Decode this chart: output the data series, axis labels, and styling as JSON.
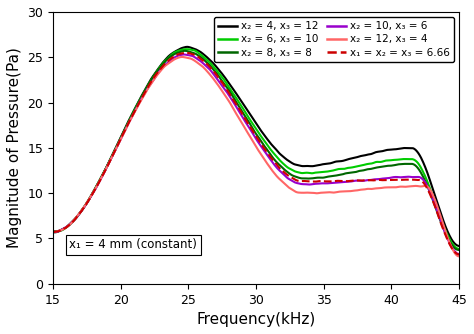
{
  "title": "",
  "xlabel": "Frequency(kHz)",
  "ylabel": "Magnitude of Pressure(Pa)",
  "xlim": [
    15,
    45
  ],
  "ylim": [
    0,
    30
  ],
  "xticks": [
    15,
    20,
    25,
    30,
    35,
    40,
    45
  ],
  "yticks": [
    0,
    5,
    10,
    15,
    20,
    25,
    30
  ],
  "annotation": "x₁ = 4 mm (constant)",
  "curves": [
    {
      "label": "x₂ = 4, x₃ = 12",
      "color": "#000000",
      "linestyle": "-",
      "peak": 26.1,
      "trough": 13.0,
      "second_peak": 15.0
    },
    {
      "label": "x₂ = 6, x₃ = 10",
      "color": "#00cc00",
      "linestyle": "-",
      "peak": 25.9,
      "trough": 12.2,
      "second_peak": 13.8
    },
    {
      "label": "x₂ = 8, x₃ = 8",
      "color": "#006600",
      "linestyle": "-",
      "peak": 25.7,
      "trough": 11.6,
      "second_peak": 13.2
    },
    {
      "label": "x₂ = 10, x₃ = 6",
      "color": "#9900cc",
      "linestyle": "-",
      "peak": 25.3,
      "trough": 11.0,
      "second_peak": 11.8
    },
    {
      "label": "x₂ = 12, x₃ = 4",
      "color": "#ff6666",
      "linestyle": "-",
      "peak": 25.0,
      "trough": 10.0,
      "second_peak": 10.8
    },
    {
      "label": "x₁ = x₂ = x₃ = 6.66",
      "color": "#cc0000",
      "linestyle": "--",
      "peak": 25.5,
      "trough": 11.3,
      "second_peak": 11.5
    }
  ],
  "background_color": "#ffffff",
  "legend_fontsize": 8,
  "axis_fontsize": 11
}
